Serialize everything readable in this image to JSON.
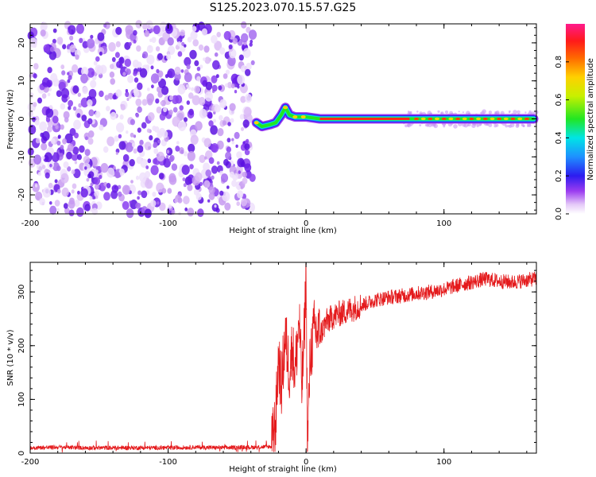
{
  "title": "S125.2023.070.15.57.G25",
  "chart_data": [
    {
      "type": "heatmap",
      "xlabel": "Height of straight line (km)",
      "ylabel": "Frequency (Hz)",
      "xlim": [
        -200,
        167
      ],
      "ylim": [
        -25,
        25
      ],
      "x_ticks": [
        -200,
        -100,
        0,
        100
      ],
      "y_ticks": [
        -20,
        -10,
        0,
        10,
        20
      ],
      "colorbar": {
        "label": "Normalized spectral amplitude",
        "range": [
          0,
          1
        ],
        "ticks": [
          "0.0",
          "0.2",
          "0.4",
          "0.6",
          "0.8"
        ]
      },
      "ridge": [
        {
          "x": -36,
          "y": -1
        },
        {
          "x": -32,
          "y": -2
        },
        {
          "x": -26,
          "y": -1.5
        },
        {
          "x": -22,
          "y": -1
        },
        {
          "x": -18,
          "y": 1
        },
        {
          "x": -15,
          "y": 3
        },
        {
          "x": -12,
          "y": 1
        },
        {
          "x": -8,
          "y": 0.5
        },
        {
          "x": 0,
          "y": 0.5
        },
        {
          "x": 10,
          "y": 0
        },
        {
          "x": 165,
          "y": 0
        }
      ],
      "noise_region_x": [
        -200,
        -38
      ]
    },
    {
      "type": "line",
      "xlabel": "Height of straight line (km)",
      "ylabel": "SNR (10 * v/v)",
      "xlim": [
        -200,
        167
      ],
      "ylim": [
        0,
        355
      ],
      "x_ticks": [
        -200,
        -100,
        0,
        100
      ],
      "y_ticks": [
        0,
        100,
        200,
        300
      ],
      "series": [
        {
          "color": "#e41a1c",
          "x": [
            -200,
            -180,
            -160,
            -140,
            -120,
            -100,
            -80,
            -60,
            -40,
            -25,
            -22,
            -20,
            -18,
            -15,
            -12,
            -10,
            -8,
            -5,
            -3,
            -1,
            0,
            1,
            3,
            6,
            10,
            15,
            20,
            30,
            40,
            50,
            60,
            70,
            80,
            90,
            100,
            110,
            120,
            130,
            140,
            150,
            160,
            167
          ],
          "values": [
            10,
            11,
            10,
            10,
            10,
            10,
            11,
            10,
            11,
            12,
            60,
            180,
            120,
            220,
            150,
            200,
            150,
            250,
            120,
            240,
            350,
            10,
            180,
            230,
            220,
            245,
            255,
            265,
            275,
            285,
            290,
            293,
            297,
            300,
            305,
            312,
            318,
            324,
            320,
            318,
            322,
            325
          ]
        }
      ]
    }
  ]
}
